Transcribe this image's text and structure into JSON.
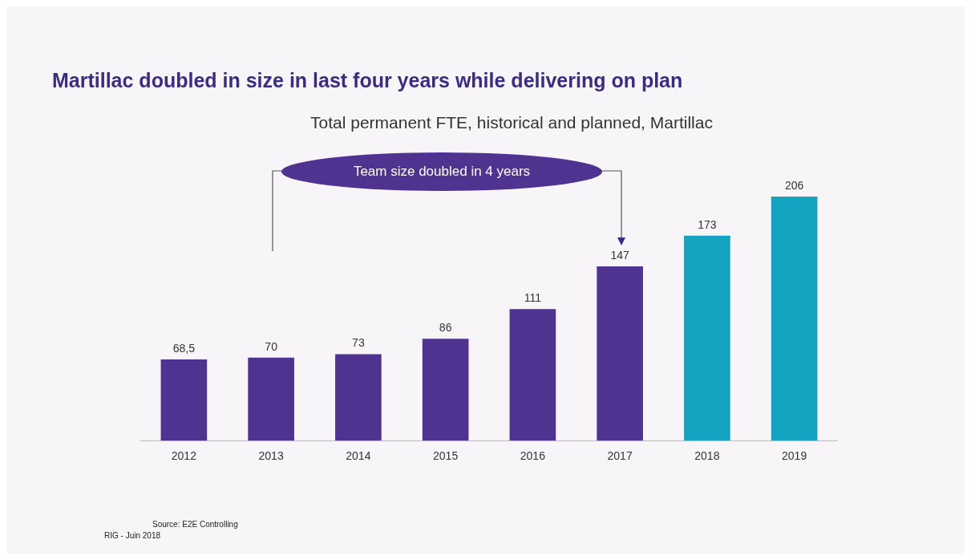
{
  "chart_data": {
    "type": "bar",
    "title": "Martillac doubled in size in last four years while delivering on plan",
    "subtitle": "Total permanent FTE, historical and planned, Martillac",
    "categories": [
      "2012",
      "2013",
      "2014",
      "2015",
      "2016",
      "2017",
      "2018",
      "2019"
    ],
    "values": [
      68.5,
      70,
      73,
      86,
      111,
      147,
      173,
      206
    ],
    "colors": [
      "#503291",
      "#503291",
      "#503291",
      "#503291",
      "#503291",
      "#503291",
      "#14a3c0",
      "#14a3c0"
    ],
    "value_labels": [
      "68,5",
      "70",
      "73",
      "86",
      "111",
      "147",
      "173",
      "206"
    ],
    "annotations": [
      "Team size doubled in 4 years",
      "Source: E2E Controlling",
      "RIG - Juin 2018"
    ],
    "grid": false,
    "legend": false
  }
}
